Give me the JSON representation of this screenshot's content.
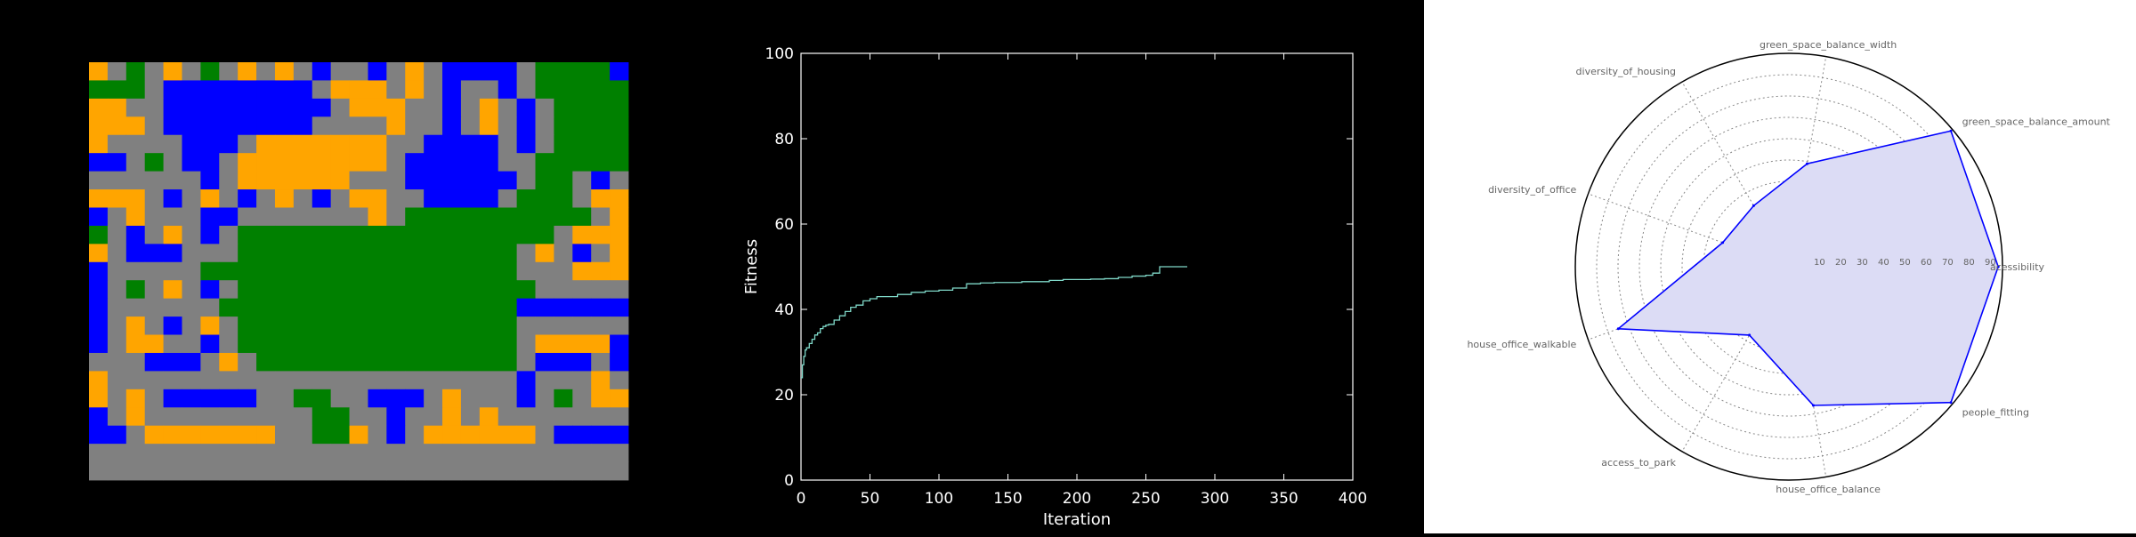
{
  "palette": {
    "road": "#808080",
    "residential": "#ffa500",
    "office": "#0000ff",
    "green": "#008000"
  },
  "grid_map": {
    "cols": 29,
    "rows": 23,
    "legend": {
      "G": "road",
      "O": "residential",
      "B": "office",
      "E": "green"
    },
    "cells": [
      "OGEGOGEGOGOGBGGBGOGBBBBGEEEEB",
      "EEEGBBBBBBBBGOOOGOGBGGBGEEEEE",
      "OOGGBBBBBBBBBGOOOGGBGOGBGEEEE",
      "OOOGBBBBBBBBGGGGOGGBGOGBGEEEE",
      "OGGGGBBBGOOOOOOOGGBBBBGBGEEEE",
      "BBGEGBBGOOOOOOOOGBBBBBGGEEEEE",
      "GGGGGGBGOOOOOOGGGBBBBBBGEEGBG",
      "OOOGBGOGBGOGBGOOGGBBBBGEEEGOO",
      "BGOGGGBBGGGGGGGOGEEEEEEEEEEGO",
      "EGBGOGBGEEEEEEEEEEEEEEEEEGOOO",
      "OGBBBGGGEEEEEEEEEEEEEEEGOGBGO",
      "BGGGGGEEEEEEEEEEEEEEEEEGGGOOO",
      "BGEGOGBGEEEEEEEEEEEEEEEEGGGGG",
      "BGGGGGGEEEEEEEEEEEEEEEEBBBBBB",
      "BGOGBGOGEEEEEEEEEEEEEEEGGGGGG",
      "BGOOGGBGEEEEEEEEEEEEEEEGOOOOB",
      "GGGBBBGOGEEEEEEEEEEEEEEGBBBGB",
      "OGGGGGGGGGGGGGGGGGGGGGGBGGGOG",
      "OGOGBBBBBGGEEGGBBBGOGGGBGEGOO",
      "BGOGGGGGGGGGEEGGBGGOGOGGGGGGG",
      "BBGOOOOOOOGGEEOGBGOOOOOOGBBBB",
      "GGGGGGGGGGGGGGGGGGGGGGGGGGGGG",
      "GGGGGGGGGGGGGGGGGGGGGGGGGGGGG"
    ]
  },
  "chart_data": [
    {
      "type": "line",
      "title": "",
      "xlabel": "Iteration",
      "ylabel": "Fitness",
      "xlim": [
        0,
        400
      ],
      "ylim": [
        0,
        100
      ],
      "xticks": [
        0,
        50,
        100,
        150,
        200,
        250,
        300,
        350,
        400
      ],
      "yticks": [
        0,
        20,
        40,
        60,
        80,
        100
      ],
      "background": "#000000",
      "axis_color": "#ffffff",
      "line_color": "#7fd8c8",
      "grid": false,
      "series": [
        {
          "name": "",
          "x": [
            0,
            1,
            2,
            3,
            4,
            6,
            8,
            10,
            12,
            14,
            16,
            18,
            20,
            24,
            28,
            32,
            36,
            40,
            45,
            50,
            55,
            60,
            70,
            80,
            90,
            100,
            110,
            120,
            130,
            140,
            150,
            160,
            170,
            180,
            190,
            200,
            210,
            220,
            230,
            240,
            250,
            255,
            260,
            270,
            280
          ],
          "y": [
            24,
            27,
            29,
            30.5,
            31,
            32,
            33,
            34,
            34.5,
            35.5,
            36,
            36.3,
            36.5,
            37.5,
            38.5,
            39.5,
            40.5,
            41,
            42,
            42.5,
            43,
            43,
            43.5,
            44,
            44.3,
            44.5,
            45,
            46,
            46.2,
            46.3,
            46.3,
            46.5,
            46.5,
            46.8,
            47,
            47,
            47.1,
            47.2,
            47.5,
            47.8,
            48,
            48.5,
            50,
            50,
            50
          ]
        }
      ]
    },
    {
      "type": "radar",
      "title": "",
      "rlim": [
        0,
        100
      ],
      "radial_ticks": [
        10,
        20,
        30,
        40,
        50,
        60,
        70,
        80,
        90
      ],
      "axes": [
        "accessibility",
        "green_space_balance_amount",
        "green_space_balance_width",
        "diversity_of_housing",
        "diversity_of_office",
        "house_office_walkable",
        "access_to_park",
        "house_office_balance",
        "people_fitting"
      ],
      "axis_labels_shown": [
        "acessibility",
        "green_space_balance_amount",
        "green_space_balance_width",
        "diversity_of_housing",
        "diversity_of_office",
        "house_office_walkable",
        "access_to_park",
        "house_office_balance",
        "people_fitting"
      ],
      "grid": true,
      "series": [
        {
          "name": "",
          "color": "#0000ff",
          "fill": "#dcdcf5",
          "values": [
            98,
            99,
            49,
            33,
            33,
            85,
            37,
            66,
            99
          ]
        }
      ]
    }
  ]
}
